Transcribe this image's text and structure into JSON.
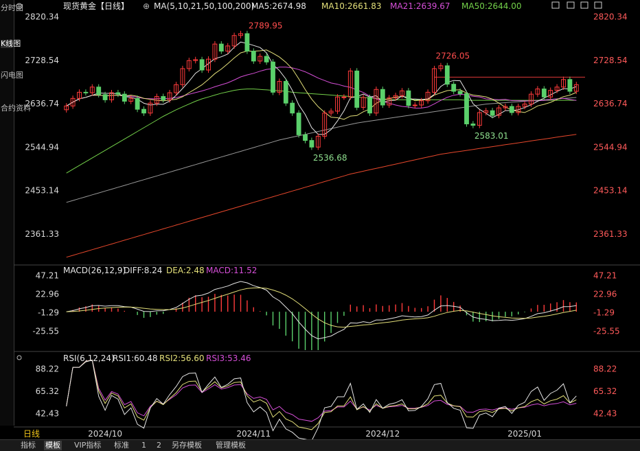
{
  "left_tabs": [
    "分时图",
    "K线图",
    "闪电图",
    "合约资料"
  ],
  "bottom_tabs": [
    "指标",
    "模板",
    "VIP指标",
    "标准",
    "1",
    "2",
    "另存模板",
    "管理模板"
  ],
  "chart_data": [
    {
      "type": "candlestick",
      "title": "现货黄金【日线】",
      "title_extra": "⊕",
      "ma_params": "MA(5,10,21,50,100,200)",
      "ma_labels": [
        {
          "name": "MA5",
          "value": "2674.98",
          "color": "#e6e6e6"
        },
        {
          "name": "MA10",
          "value": "2661.83",
          "color": "#e4e07a"
        },
        {
          "name": "MA21",
          "value": "2639.67",
          "color": "#d64fd8"
        },
        {
          "name": "MA50",
          "value": "2644.00",
          "color": "#74d24a"
        }
      ],
      "y_ticks": [
        "2820.34",
        "2728.54",
        "2636.74",
        "2544.94",
        "2453.14",
        "2361.33"
      ],
      "ylim": [
        2300,
        2830
      ],
      "x_ticks": [
        "2024/10",
        "2024/11",
        "2024/12",
        "2025/01"
      ],
      "x_tick_index": [
        6,
        29,
        49,
        71
      ],
      "annotations": [
        {
          "text": "2789.95",
          "index": 28,
          "value": 2789.95,
          "color": "#ff4d4d"
        },
        {
          "text": "2726.05",
          "index": 57,
          "value": 2726.05,
          "color": "#ff4d4d"
        },
        {
          "text": "2536.68",
          "index": 38,
          "value": 2536.68,
          "color": "#8fe08f"
        },
        {
          "text": "2583.01",
          "index": 63,
          "value": 2583.01,
          "color": "#8fe08f"
        }
      ],
      "hline_value": 2693,
      "closes": [
        2632,
        2648,
        2661,
        2660,
        2672,
        2656,
        2645,
        2660,
        2657,
        2642,
        2648,
        2625,
        2617,
        2638,
        2652,
        2645,
        2660,
        2677,
        2711,
        2728,
        2730,
        2708,
        2731,
        2763,
        2748,
        2759,
        2781,
        2785,
        2748,
        2727,
        2737,
        2725,
        2661,
        2684,
        2638,
        2617,
        2571,
        2559,
        2545,
        2568,
        2617,
        2621,
        2651,
        2651,
        2706,
        2629,
        2650,
        2617,
        2667,
        2634,
        2649,
        2654,
        2664,
        2633,
        2634,
        2643,
        2661,
        2711,
        2717,
        2678,
        2663,
        2658,
        2594,
        2591,
        2618,
        2622,
        2612,
        2628,
        2631,
        2618,
        2631,
        2636,
        2657,
        2668,
        2651,
        2665,
        2672,
        2688,
        2663,
        2677
      ],
      "series_colors": {
        "up": "#ff3b3b",
        "down": "#5bd06b"
      },
      "moving_averages": [
        {
          "name": "MA5",
          "period": 5,
          "color": "#e6e6e6"
        },
        {
          "name": "MA10",
          "period": 10,
          "color": "#e4e07a"
        },
        {
          "name": "MA21",
          "period": 21,
          "color": "#d64fd8"
        },
        {
          "name": "MA50",
          "period": 50,
          "color": "#74d24a"
        },
        {
          "name": "MA100",
          "period": 100,
          "color": "#9a9a9a"
        },
        {
          "name": "MA200",
          "period": 200,
          "color": "#e8482c"
        }
      ],
      "ma50_line": [
        2490,
        2498,
        2506,
        2514,
        2522,
        2530,
        2538,
        2546,
        2554,
        2562,
        2570,
        2578,
        2586,
        2594,
        2602,
        2610,
        2617,
        2624,
        2630,
        2636,
        2642,
        2647,
        2651,
        2655,
        2659,
        2662,
        2665,
        2667,
        2668,
        2668,
        2667,
        2666,
        2665,
        2664,
        2663,
        2661,
        2660,
        2659,
        2658,
        2657,
        2656,
        2655,
        2654,
        2653,
        2652,
        2651,
        2650,
        2649,
        2648,
        2647,
        2646,
        2645,
        2645,
        2645,
        2645,
        2645,
        2645,
        2645,
        2645,
        2645,
        2645,
        2645,
        2644,
        2644,
        2644,
        2644,
        2644,
        2644,
        2644,
        2644,
        2644,
        2644,
        2644,
        2644,
        2644,
        2644,
        2644,
        2644,
        2644,
        2644
      ],
      "ma100_line": [
        2428,
        2432,
        2436,
        2440,
        2444,
        2448,
        2452,
        2456,
        2460,
        2464,
        2468,
        2472,
        2476,
        2480,
        2484,
        2488,
        2492,
        2496,
        2500,
        2504,
        2508,
        2512,
        2516,
        2520,
        2524,
        2528,
        2532,
        2536,
        2540,
        2544,
        2548,
        2552,
        2556,
        2560,
        2563,
        2566,
        2569,
        2572,
        2575,
        2578,
        2581,
        2584,
        2587,
        2590,
        2593,
        2596,
        2598,
        2600,
        2602,
        2604,
        2606,
        2608,
        2610,
        2612,
        2614,
        2616,
        2618,
        2620,
        2622,
        2624,
        2626,
        2628,
        2630,
        2632,
        2634,
        2636,
        2637,
        2638,
        2639,
        2640,
        2641,
        2642,
        2643,
        2644,
        2645,
        2646,
        2647,
        2648,
        2649,
        2650
      ],
      "ma200_line": [
        2312,
        2316,
        2320,
        2324,
        2328,
        2332,
        2336,
        2340,
        2344,
        2348,
        2352,
        2356,
        2360,
        2364,
        2368,
        2372,
        2376,
        2380,
        2384,
        2388,
        2392,
        2396,
        2400,
        2404,
        2408,
        2412,
        2416,
        2420,
        2424,
        2428,
        2432,
        2436,
        2440,
        2444,
        2448,
        2452,
        2456,
        2460,
        2464,
        2468,
        2472,
        2476,
        2480,
        2484,
        2488,
        2491,
        2494,
        2497,
        2500,
        2503,
        2506,
        2509,
        2512,
        2515,
        2518,
        2521,
        2524,
        2527,
        2530,
        2532,
        2534,
        2536,
        2538,
        2540,
        2542,
        2544,
        2546,
        2548,
        2550,
        2552,
        2554,
        2556,
        2558,
        2560,
        2562,
        2564,
        2566,
        2568,
        2570,
        2572
      ]
    },
    {
      "type": "macd",
      "title": "MACD(26,12,9)",
      "labels": [
        {
          "name": "DIFF",
          "value": "8.24",
          "color": "#e6e6e6"
        },
        {
          "name": "DEA",
          "value": "2.48",
          "color": "#e4e07a"
        },
        {
          "name": "MACD",
          "value": "11.52",
          "color": "#d64fd8"
        }
      ],
      "y_ticks": [
        "47.21",
        "22.96",
        "-1.29",
        "-25.55"
      ],
      "ylim": [
        -50,
        52
      ]
    },
    {
      "type": "rsi",
      "title": "RSI(6,12,24)",
      "labels": [
        {
          "name": "RSI1",
          "value": "60.48",
          "color": "#e6e6e6"
        },
        {
          "name": "RSI2",
          "value": "56.60",
          "color": "#e4e07a"
        },
        {
          "name": "RSI3",
          "value": "53.46",
          "color": "#d64fd8"
        }
      ],
      "y_ticks": [
        "88.22",
        "65.32",
        "42.43"
      ],
      "ylim": [
        30,
        95
      ]
    }
  ],
  "period_label": "日线"
}
